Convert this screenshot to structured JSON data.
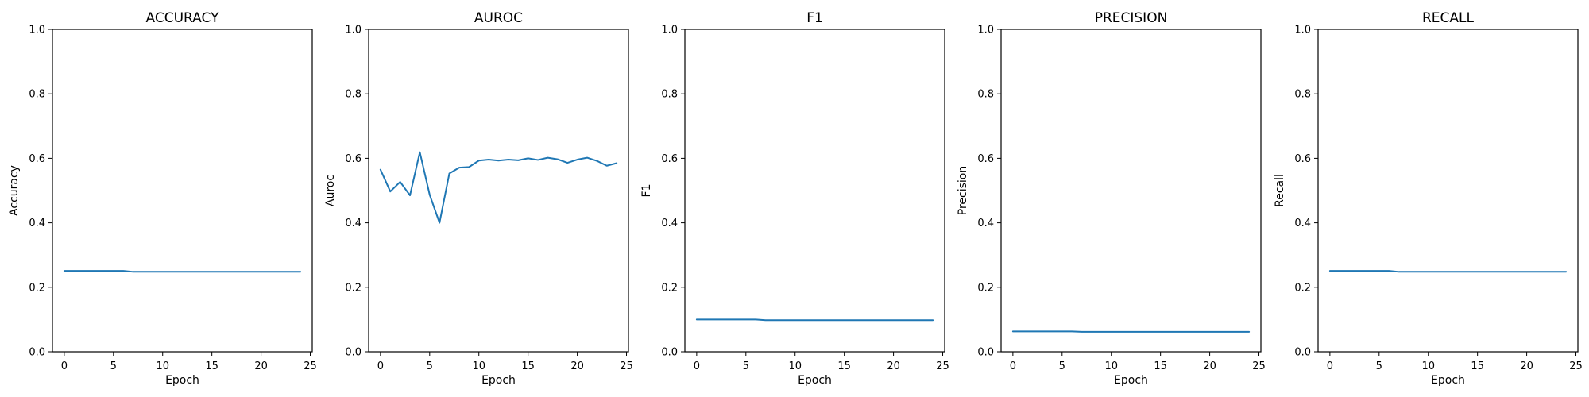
{
  "chart_data": [
    {
      "type": "line",
      "title": "ACCURACY",
      "xlabel": "Epoch",
      "ylabel": "Accuracy",
      "xlim": [
        -1.2,
        25.2
      ],
      "ylim": [
        0.0,
        1.0
      ],
      "xticks": [
        0,
        5,
        10,
        15,
        20,
        25
      ],
      "yticks": [
        0.0,
        0.2,
        0.4,
        0.6,
        0.8,
        1.0
      ],
      "xtick_labels": [
        "0",
        "5",
        "10",
        "15",
        "20",
        "25"
      ],
      "ytick_labels": [
        "0.0",
        "0.2",
        "0.4",
        "0.6",
        "0.8",
        "1.0"
      ],
      "grid": false,
      "series": [
        {
          "color": "#1f77b4",
          "x": [
            0,
            1,
            2,
            3,
            4,
            5,
            6,
            7,
            8,
            9,
            10,
            11,
            12,
            13,
            14,
            15,
            16,
            17,
            18,
            19,
            20,
            21,
            22,
            23,
            24
          ],
          "y": [
            0.251,
            0.251,
            0.251,
            0.251,
            0.251,
            0.251,
            0.251,
            0.248,
            0.248,
            0.248,
            0.248,
            0.248,
            0.248,
            0.248,
            0.248,
            0.248,
            0.248,
            0.248,
            0.248,
            0.248,
            0.248,
            0.248,
            0.248,
            0.248,
            0.248
          ]
        }
      ]
    },
    {
      "type": "line",
      "title": "AUROC",
      "xlabel": "Epoch",
      "ylabel": "Auroc",
      "xlim": [
        -1.2,
        25.2
      ],
      "ylim": [
        0.0,
        1.0
      ],
      "xticks": [
        0,
        5,
        10,
        15,
        20,
        25
      ],
      "yticks": [
        0.0,
        0.2,
        0.4,
        0.6,
        0.8,
        1.0
      ],
      "xtick_labels": [
        "0",
        "5",
        "10",
        "15",
        "20",
        "25"
      ],
      "ytick_labels": [
        "0.0",
        "0.2",
        "0.4",
        "0.6",
        "0.8",
        "1.0"
      ],
      "grid": false,
      "series": [
        {
          "color": "#1f77b4",
          "x": [
            0,
            1,
            2,
            3,
            4,
            5,
            6,
            7,
            8,
            9,
            10,
            11,
            12,
            13,
            14,
            15,
            16,
            17,
            18,
            19,
            20,
            21,
            22,
            23,
            24
          ],
          "y": [
            0.565,
            0.497,
            0.527,
            0.485,
            0.619,
            0.487,
            0.4,
            0.553,
            0.571,
            0.573,
            0.593,
            0.596,
            0.593,
            0.596,
            0.594,
            0.6,
            0.595,
            0.602,
            0.597,
            0.586,
            0.596,
            0.602,
            0.592,
            0.577,
            0.585
          ]
        }
      ]
    },
    {
      "type": "line",
      "title": "F1",
      "xlabel": "Epoch",
      "ylabel": "F1",
      "xlim": [
        -1.2,
        25.2
      ],
      "ylim": [
        0.0,
        1.0
      ],
      "xticks": [
        0,
        5,
        10,
        15,
        20,
        25
      ],
      "yticks": [
        0.0,
        0.2,
        0.4,
        0.6,
        0.8,
        1.0
      ],
      "xtick_labels": [
        "0",
        "5",
        "10",
        "15",
        "20",
        "25"
      ],
      "ytick_labels": [
        "0.0",
        "0.2",
        "0.4",
        "0.6",
        "0.8",
        "1.0"
      ],
      "grid": false,
      "series": [
        {
          "color": "#1f77b4",
          "x": [
            0,
            1,
            2,
            3,
            4,
            5,
            6,
            7,
            8,
            9,
            10,
            11,
            12,
            13,
            14,
            15,
            16,
            17,
            18,
            19,
            20,
            21,
            22,
            23,
            24
          ],
          "y": [
            0.1,
            0.1,
            0.1,
            0.1,
            0.1,
            0.1,
            0.1,
            0.098,
            0.098,
            0.098,
            0.098,
            0.098,
            0.098,
            0.098,
            0.098,
            0.098,
            0.098,
            0.098,
            0.098,
            0.098,
            0.098,
            0.098,
            0.098,
            0.098,
            0.098
          ]
        }
      ]
    },
    {
      "type": "line",
      "title": "PRECISION",
      "xlabel": "Epoch",
      "ylabel": "Precision",
      "xlim": [
        -1.2,
        25.2
      ],
      "ylim": [
        0.0,
        1.0
      ],
      "xticks": [
        0,
        5,
        10,
        15,
        20,
        25
      ],
      "yticks": [
        0.0,
        0.2,
        0.4,
        0.6,
        0.8,
        1.0
      ],
      "xtick_labels": [
        "0",
        "5",
        "10",
        "15",
        "20",
        "25"
      ],
      "ytick_labels": [
        "0.0",
        "0.2",
        "0.4",
        "0.6",
        "0.8",
        "1.0"
      ],
      "grid": false,
      "series": [
        {
          "color": "#1f77b4",
          "x": [
            0,
            1,
            2,
            3,
            4,
            5,
            6,
            7,
            8,
            9,
            10,
            11,
            12,
            13,
            14,
            15,
            16,
            17,
            18,
            19,
            20,
            21,
            22,
            23,
            24
          ],
          "y": [
            0.063,
            0.063,
            0.063,
            0.063,
            0.063,
            0.063,
            0.063,
            0.062,
            0.062,
            0.062,
            0.062,
            0.062,
            0.062,
            0.062,
            0.062,
            0.062,
            0.062,
            0.062,
            0.062,
            0.062,
            0.062,
            0.062,
            0.062,
            0.062,
            0.062
          ]
        }
      ]
    },
    {
      "type": "line",
      "title": "RECALL",
      "xlabel": "Epoch",
      "ylabel": "Recall",
      "xlim": [
        -1.2,
        25.2
      ],
      "ylim": [
        0.0,
        1.0
      ],
      "xticks": [
        0,
        5,
        10,
        15,
        20,
        25
      ],
      "yticks": [
        0.0,
        0.2,
        0.4,
        0.6,
        0.8,
        1.0
      ],
      "xtick_labels": [
        "0",
        "5",
        "10",
        "15",
        "20",
        "25"
      ],
      "ytick_labels": [
        "0.0",
        "0.2",
        "0.4",
        "0.6",
        "0.8",
        "1.0"
      ],
      "grid": false,
      "series": [
        {
          "color": "#1f77b4",
          "x": [
            0,
            1,
            2,
            3,
            4,
            5,
            6,
            7,
            8,
            9,
            10,
            11,
            12,
            13,
            14,
            15,
            16,
            17,
            18,
            19,
            20,
            21,
            22,
            23,
            24
          ],
          "y": [
            0.251,
            0.251,
            0.251,
            0.251,
            0.251,
            0.251,
            0.251,
            0.248,
            0.248,
            0.248,
            0.248,
            0.248,
            0.248,
            0.248,
            0.248,
            0.248,
            0.248,
            0.248,
            0.248,
            0.248,
            0.248,
            0.248,
            0.248,
            0.248,
            0.248
          ]
        }
      ]
    }
  ]
}
